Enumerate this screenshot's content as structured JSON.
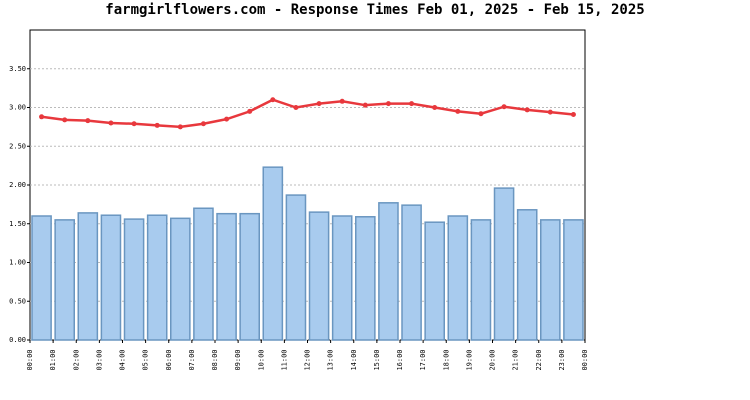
{
  "chart_data": {
    "type": "combo",
    "title": "farmgirlflowers.com - Response Times Feb 01, 2025 - Feb 15, 2025",
    "xticks": [
      "00:00",
      "01:00",
      "02:00",
      "03:00",
      "04:00",
      "05:00",
      "06:00",
      "07:00",
      "08:00",
      "09:00",
      "10:00",
      "11:00",
      "12:00",
      "13:00",
      "14:00",
      "15:00",
      "16:00",
      "17:00",
      "18:00",
      "19:00",
      "20:00",
      "21:00",
      "22:00",
      "23:00",
      "00:00"
    ],
    "ylim": [
      0,
      4
    ],
    "yticks": [
      {
        "value": 0,
        "label": "0.00"
      },
      {
        "value": 0.5,
        "label": "0.50"
      },
      {
        "value": 1,
        "label": "1.00"
      },
      {
        "value": 1.5,
        "label": "1.50"
      },
      {
        "value": 2,
        "label": "2.00"
      },
      {
        "value": 2.5,
        "label": "2.50"
      },
      {
        "value": 3,
        "label": "3.00"
      },
      {
        "value": 3.5,
        "label": "3.50"
      }
    ],
    "grid": true,
    "series": [
      {
        "type": "bar",
        "color": "#a8cbee",
        "values": [
          1.6,
          1.55,
          1.64,
          1.61,
          1.56,
          1.61,
          1.57,
          1.7,
          1.63,
          1.63,
          2.23,
          1.87,
          1.65,
          1.6,
          1.59,
          1.77,
          1.74,
          1.52,
          1.6,
          1.55,
          1.96,
          1.68,
          1.55,
          1.55
        ]
      },
      {
        "type": "line",
        "color": "#e8383d",
        "values": [
          2.88,
          2.84,
          2.83,
          2.8,
          2.79,
          2.77,
          2.75,
          2.79,
          2.85,
          2.95,
          3.1,
          3.0,
          3.05,
          3.08,
          3.03,
          3.05,
          3.05,
          3.0,
          2.95,
          2.92,
          3.01,
          2.97,
          2.94,
          2.91
        ]
      }
    ]
  }
}
